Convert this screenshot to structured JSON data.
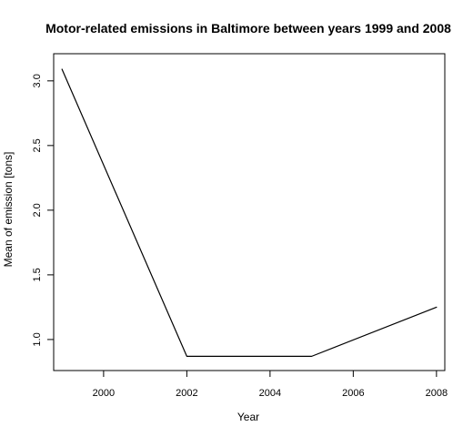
{
  "chart_data": {
    "type": "line",
    "title": "Motor-related emissions in Baltimore between years 1999 and 2008",
    "xlabel": "Year",
    "ylabel": "Mean of emission [tons]",
    "x": [
      1999,
      2002,
      2005,
      2008
    ],
    "series": [
      {
        "values": [
          3.09,
          0.87,
          0.87,
          1.25
        ],
        "color": "#000000"
      }
    ],
    "xlim": [
      1998.8,
      2008.2
    ],
    "ylim": [
      0.76,
      3.21
    ],
    "xticks": [
      2000,
      2002,
      2004,
      2006,
      2008
    ],
    "yticks": [
      1.0,
      1.5,
      2.0,
      2.5,
      3.0
    ],
    "xtick_labels": [
      "2000",
      "2002",
      "2004",
      "2006",
      "2008"
    ],
    "ytick_labels": [
      "1.0",
      "1.5",
      "2.0",
      "2.5",
      "3.0"
    ],
    "grid": false,
    "legend": "none"
  }
}
